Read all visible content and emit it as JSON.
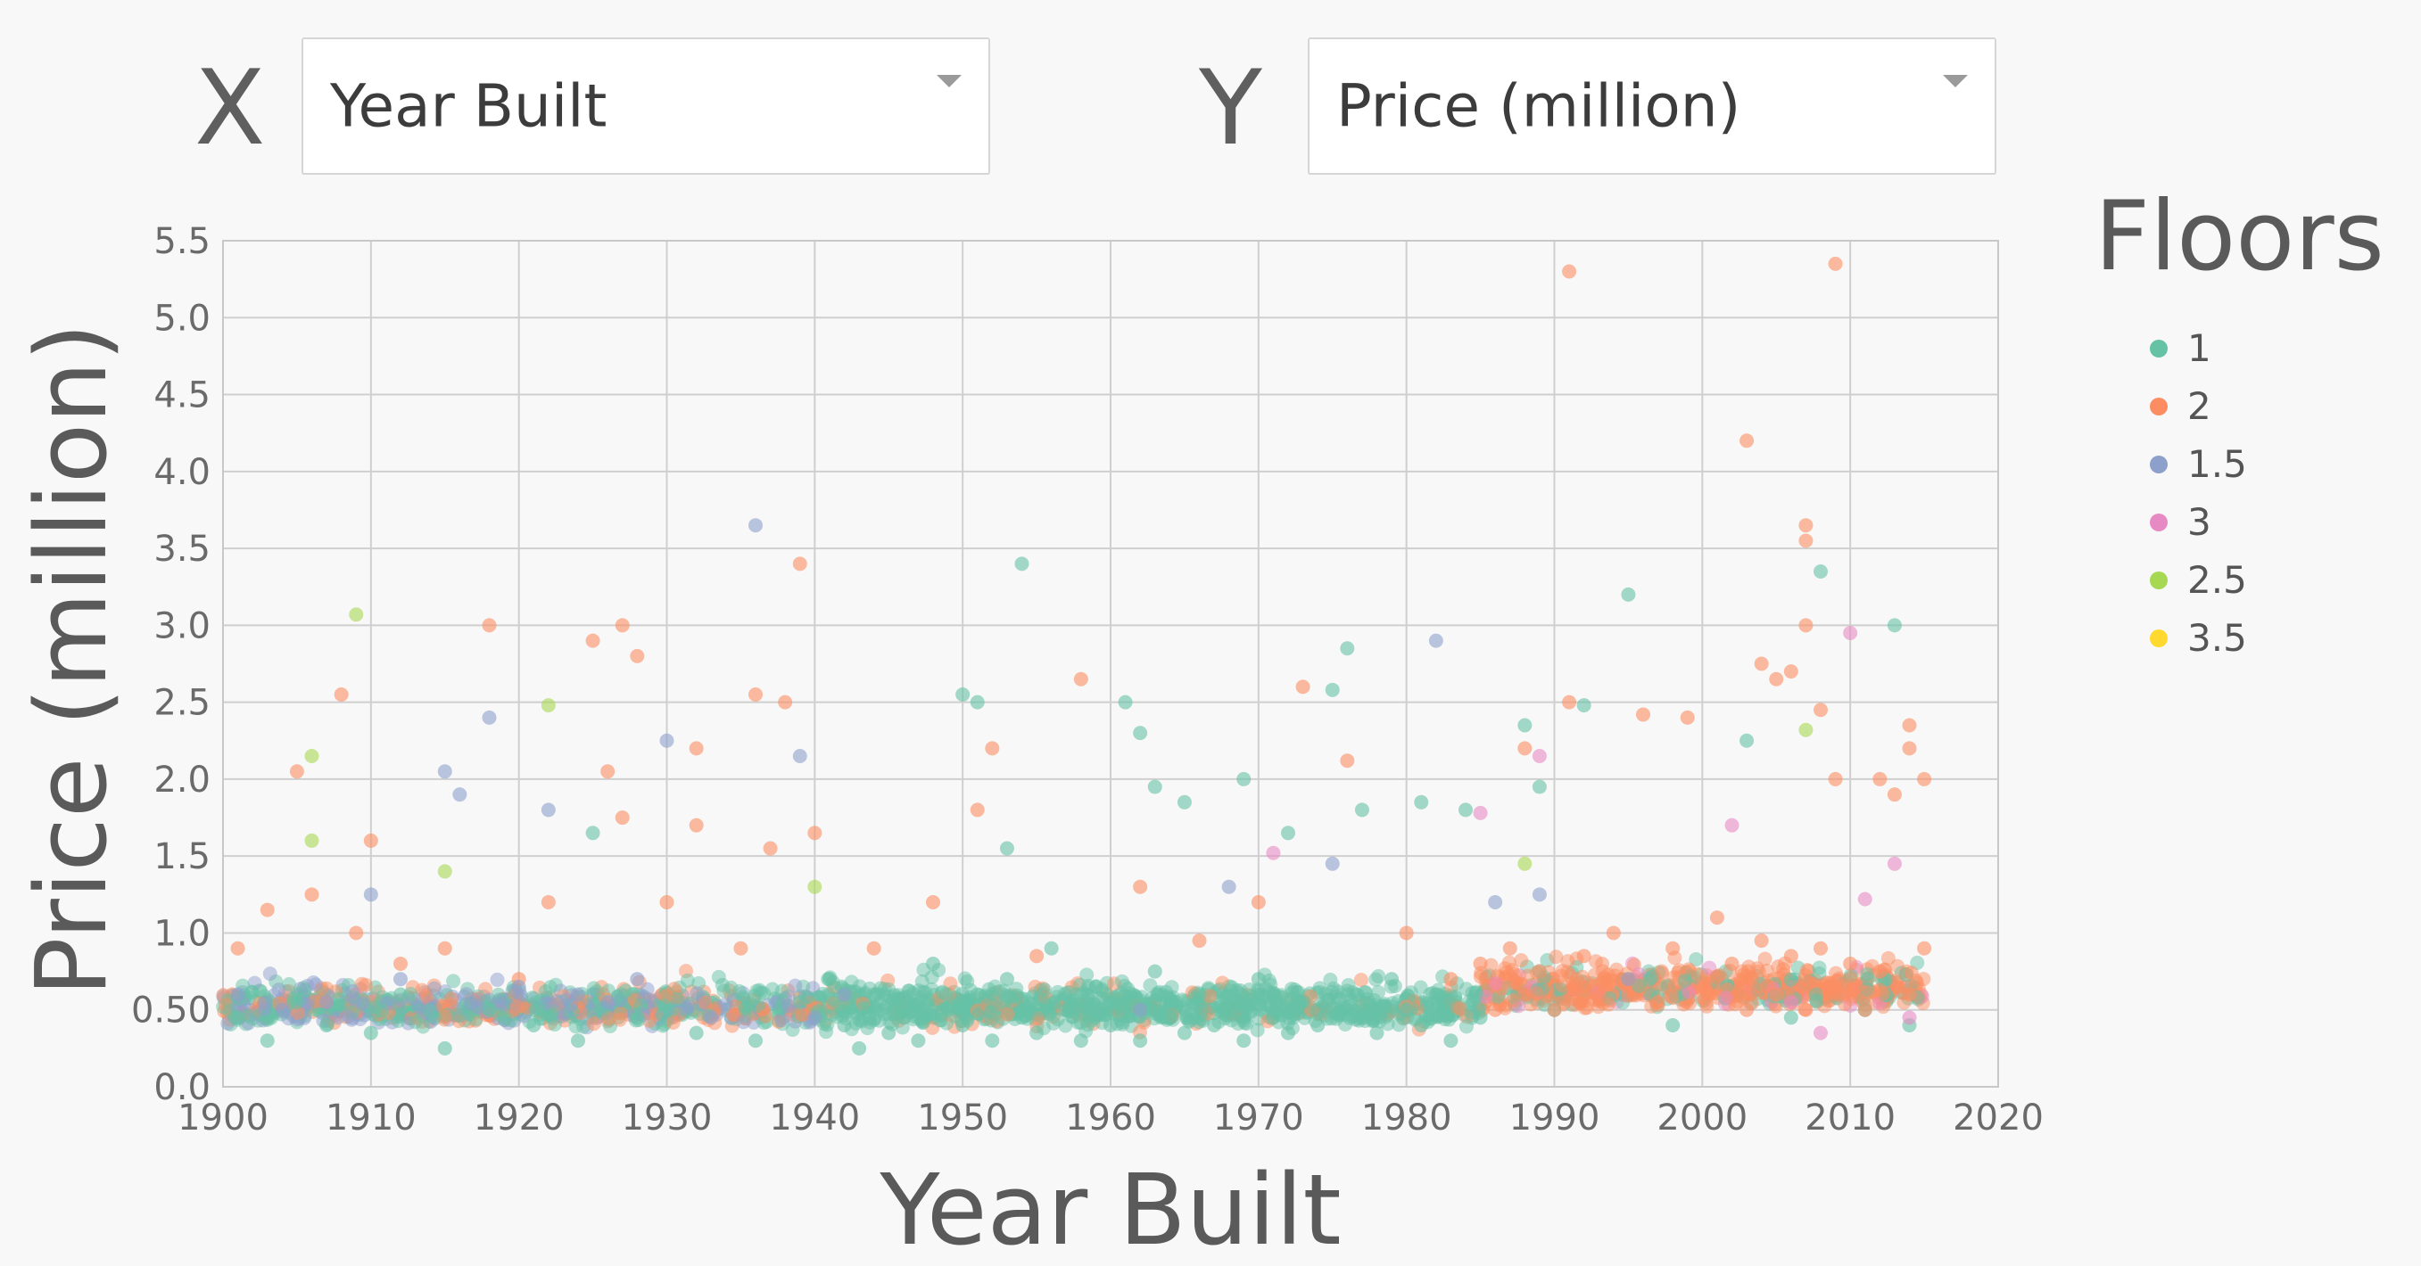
{
  "controls": {
    "x_label": "X",
    "y_label": "Y",
    "x_select_value": "Year Built",
    "y_select_value": "Price (million)"
  },
  "chart_data": {
    "type": "scatter",
    "xlabel": "Year Built",
    "ylabel": "Price (million)",
    "xlim": [
      1900,
      2020
    ],
    "ylim": [
      0,
      5.5
    ],
    "x_ticks": [
      1900,
      1910,
      1920,
      1930,
      1940,
      1950,
      1960,
      1970,
      1980,
      1990,
      2000,
      2010,
      2020
    ],
    "y_ticks": [
      0.0,
      0.5,
      1.0,
      1.5,
      2.0,
      2.5,
      3.0,
      3.5,
      4.0,
      4.5,
      5.0,
      5.5
    ],
    "y_tick_labels": [
      "0.0",
      "0.50",
      "1.0",
      "1.5",
      "2.0",
      "2.5",
      "3.0",
      "3.5",
      "4.0",
      "4.5",
      "5.0",
      "5.5"
    ],
    "grid": true,
    "legend_title": "Floors",
    "legend_position": "right",
    "series": [
      {
        "name": "1",
        "color": "#66c2a5",
        "points": [
          [
            1901,
            0.45
          ],
          [
            1903,
            0.3
          ],
          [
            1905,
            0.55
          ],
          [
            1907,
            0.4
          ],
          [
            1910,
            0.35
          ],
          [
            1912,
            0.6
          ],
          [
            1915,
            0.25
          ],
          [
            1918,
            0.5
          ],
          [
            1921,
            0.4
          ],
          [
            1924,
            0.3
          ],
          [
            1925,
            1.65
          ],
          [
            1928,
            0.45
          ],
          [
            1932,
            0.35
          ],
          [
            1936,
            0.3
          ],
          [
            1939,
            0.55
          ],
          [
            1941,
            0.7
          ],
          [
            1942,
            0.4
          ],
          [
            1943,
            0.25
          ],
          [
            1944,
            0.6
          ],
          [
            1945,
            0.35
          ],
          [
            1946,
            0.45
          ],
          [
            1947,
            0.3
          ],
          [
            1948,
            0.8
          ],
          [
            1949,
            0.5
          ],
          [
            1950,
            0.4
          ],
          [
            1950,
            2.55
          ],
          [
            1951,
            2.5
          ],
          [
            1951,
            0.6
          ],
          [
            1952,
            0.3
          ],
          [
            1953,
            0.7
          ],
          [
            1953,
            1.55
          ],
          [
            1954,
            3.4
          ],
          [
            1954,
            0.45
          ],
          [
            1955,
            0.35
          ],
          [
            1956,
            0.9
          ],
          [
            1957,
            0.5
          ],
          [
            1958,
            0.3
          ],
          [
            1959,
            0.65
          ],
          [
            1960,
            0.4
          ],
          [
            1961,
            2.5
          ],
          [
            1961,
            0.55
          ],
          [
            1962,
            2.3
          ],
          [
            1962,
            0.3
          ],
          [
            1963,
            1.95
          ],
          [
            1963,
            0.75
          ],
          [
            1964,
            0.45
          ],
          [
            1965,
            1.85
          ],
          [
            1965,
            0.35
          ],
          [
            1966,
            0.6
          ],
          [
            1967,
            0.4
          ],
          [
            1968,
            0.5
          ],
          [
            1969,
            2.0
          ],
          [
            1969,
            0.3
          ],
          [
            1970,
            0.7
          ],
          [
            1971,
            0.45
          ],
          [
            1972,
            1.65
          ],
          [
            1972,
            0.35
          ],
          [
            1973,
            0.55
          ],
          [
            1974,
            0.4
          ],
          [
            1975,
            2.58
          ],
          [
            1976,
            2.85
          ],
          [
            1976,
            0.6
          ],
          [
            1977,
            1.8
          ],
          [
            1977,
            0.45
          ],
          [
            1978,
            0.35
          ],
          [
            1979,
            0.7
          ],
          [
            1980,
            0.5
          ],
          [
            1981,
            1.85
          ],
          [
            1981,
            0.4
          ],
          [
            1982,
            0.6
          ],
          [
            1983,
            0.3
          ],
          [
            1984,
            1.8
          ],
          [
            1985,
            0.45
          ],
          [
            1988,
            2.35
          ],
          [
            1989,
            1.95
          ],
          [
            1990,
            0.5
          ],
          [
            1992,
            2.48
          ],
          [
            1995,
            3.2
          ],
          [
            1998,
            0.4
          ],
          [
            2003,
            2.25
          ],
          [
            2006,
            0.45
          ],
          [
            2008,
            3.35
          ],
          [
            2011,
            0.5
          ],
          [
            2013,
            3.0
          ],
          [
            2014,
            0.4
          ]
        ]
      },
      {
        "name": "2",
        "color": "#fc8d62",
        "points": [
          [
            1901,
            0.9
          ],
          [
            1903,
            1.15
          ],
          [
            1905,
            2.05
          ],
          [
            1906,
            1.25
          ],
          [
            1908,
            2.55
          ],
          [
            1909,
            1.0
          ],
          [
            1910,
            1.6
          ],
          [
            1912,
            0.8
          ],
          [
            1915,
            0.9
          ],
          [
            1918,
            3.0
          ],
          [
            1920,
            0.7
          ],
          [
            1922,
            1.2
          ],
          [
            1925,
            2.9
          ],
          [
            1926,
            2.05
          ],
          [
            1927,
            3.0
          ],
          [
            1927,
            1.75
          ],
          [
            1928,
            2.8
          ],
          [
            1930,
            1.2
          ],
          [
            1932,
            2.2
          ],
          [
            1932,
            1.7
          ],
          [
            1935,
            0.9
          ],
          [
            1936,
            2.55
          ],
          [
            1937,
            1.55
          ],
          [
            1938,
            2.5
          ],
          [
            1939,
            3.4
          ],
          [
            1940,
            1.65
          ],
          [
            1944,
            0.9
          ],
          [
            1948,
            1.2
          ],
          [
            1951,
            1.8
          ],
          [
            1952,
            2.2
          ],
          [
            1955,
            0.85
          ],
          [
            1958,
            2.65
          ],
          [
            1962,
            1.3
          ],
          [
            1966,
            0.95
          ],
          [
            1970,
            1.2
          ],
          [
            1973,
            2.6
          ],
          [
            1976,
            2.12
          ],
          [
            1980,
            1.0
          ],
          [
            1983,
            0.7
          ],
          [
            1985,
            0.8
          ],
          [
            1986,
            0.5
          ],
          [
            1987,
            0.9
          ],
          [
            1988,
            0.6
          ],
          [
            1988,
            2.2
          ],
          [
            1989,
            0.75
          ],
          [
            1990,
            0.5
          ],
          [
            1991,
            5.3
          ],
          [
            1991,
            2.5
          ],
          [
            1992,
            0.85
          ],
          [
            1993,
            0.6
          ],
          [
            1994,
            1.0
          ],
          [
            1995,
            0.7
          ],
          [
            1996,
            2.42
          ],
          [
            1997,
            0.55
          ],
          [
            1998,
            0.9
          ],
          [
            1999,
            2.4
          ],
          [
            2000,
            0.65
          ],
          [
            2001,
            1.1
          ],
          [
            2002,
            0.8
          ],
          [
            2003,
            4.2
          ],
          [
            2003,
            0.5
          ],
          [
            2004,
            2.75
          ],
          [
            2004,
            0.95
          ],
          [
            2005,
            2.65
          ],
          [
            2005,
            0.6
          ],
          [
            2006,
            2.7
          ],
          [
            2006,
            0.85
          ],
          [
            2007,
            3.65
          ],
          [
            2007,
            3.55
          ],
          [
            2007,
            3.0
          ],
          [
            2007,
            0.5
          ],
          [
            2008,
            2.45
          ],
          [
            2008,
            0.9
          ],
          [
            2009,
            5.35
          ],
          [
            2009,
            2.0
          ],
          [
            2009,
            0.65
          ],
          [
            2010,
            0.8
          ],
          [
            2011,
            0.5
          ],
          [
            2012,
            2.0
          ],
          [
            2012,
            0.75
          ],
          [
            2013,
            1.9
          ],
          [
            2014,
            2.35
          ],
          [
            2014,
            2.2
          ],
          [
            2014,
            0.6
          ],
          [
            2015,
            2.0
          ],
          [
            2015,
            0.9
          ]
        ]
      },
      {
        "name": "1.5",
        "color": "#8da0cb",
        "points": [
          [
            1901,
            0.6
          ],
          [
            1904,
            0.5
          ],
          [
            1907,
            0.55
          ],
          [
            1910,
            1.25
          ],
          [
            1912,
            0.7
          ],
          [
            1915,
            2.05
          ],
          [
            1916,
            1.9
          ],
          [
            1918,
            2.4
          ],
          [
            1920,
            0.65
          ],
          [
            1922,
            1.8
          ],
          [
            1924,
            0.6
          ],
          [
            1926,
            0.55
          ],
          [
            1928,
            0.7
          ],
          [
            1930,
            2.25
          ],
          [
            1933,
            0.45
          ],
          [
            1936,
            3.65
          ],
          [
            1939,
            2.15
          ],
          [
            1940,
            0.45
          ],
          [
            1942,
            0.6
          ],
          [
            1962,
            0.5
          ],
          [
            1968,
            1.3
          ],
          [
            1975,
            1.45
          ],
          [
            1982,
            2.9
          ],
          [
            1986,
            1.2
          ],
          [
            1989,
            1.25
          ],
          [
            1995,
            0.7
          ]
        ]
      },
      {
        "name": "3",
        "color": "#e78ac3",
        "points": [
          [
            1971,
            1.52
          ],
          [
            1985,
            1.78
          ],
          [
            1989,
            2.15
          ],
          [
            2002,
            1.7
          ],
          [
            2006,
            0.55
          ],
          [
            2008,
            0.35
          ],
          [
            2010,
            2.95
          ],
          [
            2011,
            1.22
          ],
          [
            2013,
            1.45
          ],
          [
            2014,
            0.45
          ]
        ]
      },
      {
        "name": "2.5",
        "color": "#a6d854",
        "points": [
          [
            1906,
            2.15
          ],
          [
            1906,
            1.6
          ],
          [
            1909,
            3.07
          ],
          [
            1915,
            1.4
          ],
          [
            1922,
            2.48
          ],
          [
            1940,
            1.3
          ],
          [
            1988,
            1.45
          ],
          [
            2007,
            2.32
          ]
        ]
      },
      {
        "name": "3.5",
        "color": "#ffd92f",
        "points": []
      }
    ]
  }
}
